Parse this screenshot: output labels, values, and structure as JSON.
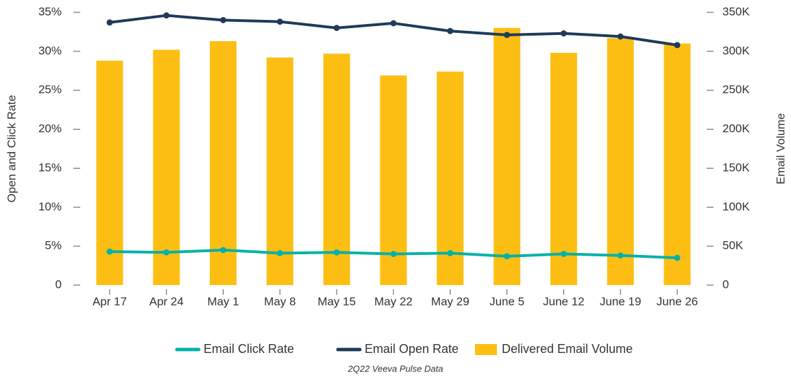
{
  "chart_data": {
    "type": "combo",
    "ylabel": "Open and Click Rate",
    "y2label": "Email Volume",
    "footnote": "2Q22 Veeva Pulse Data",
    "categories": [
      "Apr 17",
      "Apr 24",
      "May 1",
      "May 8",
      "May 15",
      "May 22",
      "May 29",
      "June 5",
      "June 12",
      "June 19",
      "June 26"
    ],
    "series": [
      {
        "name": "Email Click Rate",
        "type": "line",
        "color": "#00b2a9",
        "values": [
          4.3,
          4.2,
          4.5,
          4.1,
          4.2,
          4.0,
          4.1,
          3.7,
          4.0,
          3.8,
          3.5
        ]
      },
      {
        "name": "Email Open Rate",
        "type": "line",
        "color": "#1f3b5a",
        "values": [
          33.7,
          34.6,
          34.0,
          33.8,
          33.0,
          33.6,
          32.6,
          32.1,
          32.3,
          31.9,
          30.8
        ]
      },
      {
        "name": "Delivered Email Volume",
        "type": "bar",
        "axis": "y2",
        "color": "#fdbe14",
        "values": [
          288000,
          302000,
          313000,
          292000,
          297000,
          269000,
          274000,
          330000,
          298000,
          317000,
          310000
        ]
      }
    ],
    "ylim": [
      0,
      35
    ],
    "yticks": [
      0,
      {
        "value": 5,
        "label": "5%"
      },
      {
        "value": 10,
        "label": "10%"
      },
      {
        "value": 15,
        "label": "15%"
      },
      {
        "value": 20,
        "label": "20%"
      },
      {
        "value": 25,
        "label": "25%"
      },
      {
        "value": 30,
        "label": "30%"
      },
      {
        "value": 35,
        "label": "35%"
      }
    ],
    "y2lim": [
      0,
      350000
    ],
    "y2ticks": [
      0,
      {
        "value": 50000,
        "label": "50K"
      },
      {
        "value": 100000,
        "label": "100K"
      },
      {
        "value": 150000,
        "label": "150K"
      },
      {
        "value": 200000,
        "label": "200K"
      },
      {
        "value": 250000,
        "label": "250K"
      },
      {
        "value": 300000,
        "label": "300K"
      },
      {
        "value": 350000,
        "label": "350K"
      }
    ],
    "grid": false,
    "legend": "bottom"
  }
}
